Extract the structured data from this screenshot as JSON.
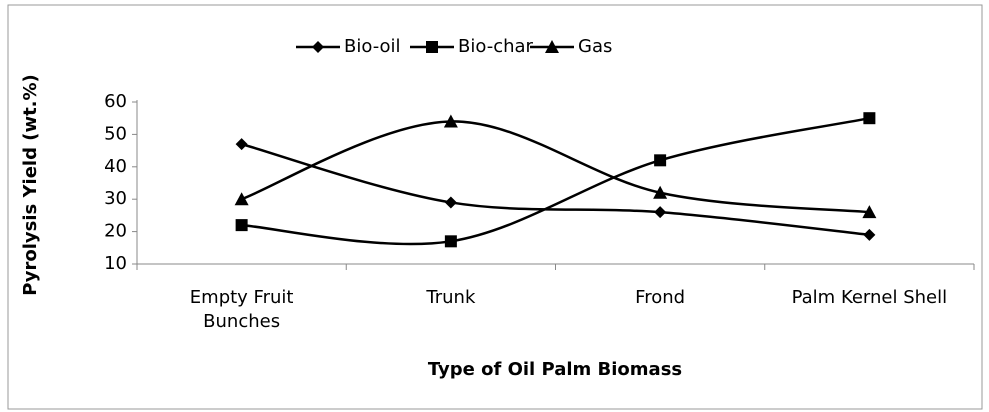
{
  "chart_data": {
    "type": "line",
    "x_label": "Type of Oil Palm Biomass",
    "y_label": "Pyrolysis Yield (wt.%)",
    "categories": [
      "Empty Fruit Bunches",
      "Trunk",
      "Frond",
      "Palm Kernel Shell"
    ],
    "series": [
      {
        "name": "Bio-oil",
        "color": "#000000",
        "marker": "diamond",
        "values": [
          47,
          29,
          26,
          19
        ]
      },
      {
        "name": "Bio-char",
        "color": "#000000",
        "marker": "square",
        "values": [
          22,
          17,
          42,
          55
        ]
      },
      {
        "name": "Gas",
        "color": "#000000",
        "marker": "triangle",
        "values": [
          30,
          54,
          32,
          26
        ]
      }
    ],
    "ylim": [
      10,
      60
    ],
    "yticks": [
      10,
      20,
      30,
      40,
      50,
      60
    ],
    "grid": false,
    "legend": "top",
    "smooth": true
  }
}
